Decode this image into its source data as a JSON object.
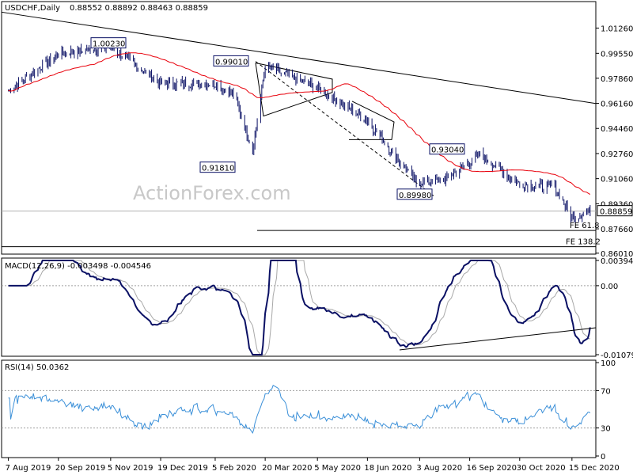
{
  "chart_data": [
    {
      "type": "candlestick",
      "panel": "price",
      "title": "USDCHF,Daily",
      "ohlc_label": "0.88552 0.88892 0.88463 0.88859",
      "watermark": "ActionForex.com",
      "ylim": [
        0.86,
        1.03
      ],
      "y_ticks": [
        "1.01260",
        "0.99550",
        "0.97860",
        "0.96160",
        "0.94460",
        "0.92760",
        "0.91060",
        "0.89360",
        "0.87660",
        "0.86010"
      ],
      "last_price": "0.88859",
      "annotations": [
        "1.00230",
        "0.99010",
        "0.91810",
        "0.93040",
        "0.89980",
        "FE 61.8",
        "FE 138.2"
      ],
      "ma_color": "#e8000b",
      "candle_color": "#0a1064",
      "series_close_approx": [
        {
          "x": "2019-08-07",
          "y": 0.97
        },
        {
          "x": "2019-09-20",
          "y": 0.995
        },
        {
          "x": "2019-11-05",
          "y": 1.0
        },
        {
          "x": "2019-12-19",
          "y": 0.975
        },
        {
          "x": "2020-02-05",
          "y": 0.975
        },
        {
          "x": "2020-02-21",
          "y": 0.968
        },
        {
          "x": "2020-03-09",
          "y": 0.93
        },
        {
          "x": "2020-03-20",
          "y": 0.987
        },
        {
          "x": "2020-05-05",
          "y": 0.972
        },
        {
          "x": "2020-06-18",
          "y": 0.95
        },
        {
          "x": "2020-07-31",
          "y": 0.908
        },
        {
          "x": "2020-08-25",
          "y": 0.91
        },
        {
          "x": "2020-09-25",
          "y": 0.927
        },
        {
          "x": "2020-10-30",
          "y": 0.907
        },
        {
          "x": "2020-11-30",
          "y": 0.905
        },
        {
          "x": "2020-12-15",
          "y": 0.884
        },
        {
          "x": "2020-12-31",
          "y": 0.8886
        }
      ]
    },
    {
      "type": "line",
      "panel": "macd",
      "title": "MACD(12,26,9) -0.003498 -0.004546",
      "y_ticks": [
        "0.003949",
        "0.00",
        "-0.010793"
      ],
      "colors": {
        "macd": "#0a1064",
        "signal": "#a8a8a8"
      }
    },
    {
      "type": "line",
      "panel": "rsi",
      "title": "RSI(14) 50.0362",
      "y_ticks": [
        "100",
        "70",
        "30",
        "0"
      ],
      "color": "#3a8fd8"
    }
  ],
  "x_axis_labels": [
    "7 Aug 2019",
    "20 Sep 2019",
    "5 Nov 2019",
    "19 Dec 2019",
    "5 Feb 2020",
    "20 Mar 2020",
    "5 May 2020",
    "18 Jun 2020",
    "3 Aug 2020",
    "16 Sep 2020",
    "30 Oct 2020",
    "15 Dec 2020"
  ]
}
